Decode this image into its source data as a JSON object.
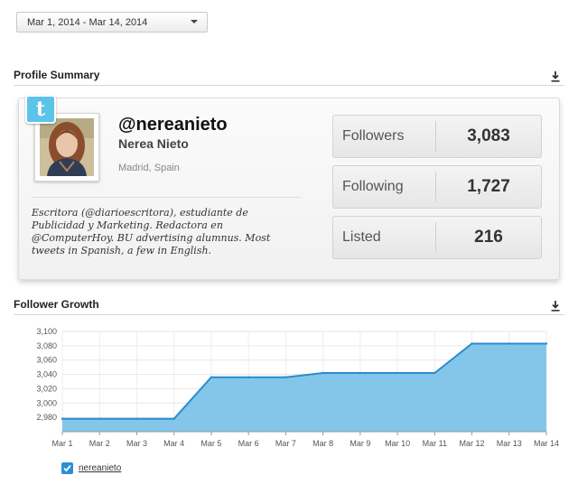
{
  "date_range": {
    "selected": "Mar 1, 2014 - Mar 14, 2014"
  },
  "profile_summary": {
    "title": "Profile Summary",
    "handle": "@nereanieto",
    "name": "Nerea Nieto",
    "location": "Madrid, Spain",
    "bio": "Escritora (@diarioescritora), estudiante de Publicidad y Marketing. Redactora en @ComputerHoy. BU advertising alumnus. Most tweets in Spanish, a few in English.",
    "stats": [
      {
        "label": "Followers",
        "value": "3,083"
      },
      {
        "label": "Following",
        "value": "1,727"
      },
      {
        "label": "Listed",
        "value": "216"
      }
    ]
  },
  "follower_growth": {
    "title": "Follower Growth"
  },
  "colors": {
    "area_fill": "#7cc3e8",
    "line": "#2b8ccf",
    "accent": "#2c8fd6"
  },
  "chart_data": {
    "type": "area",
    "categories": [
      "Mar 1",
      "Mar 2",
      "Mar 3",
      "Mar 4",
      "Mar 5",
      "Mar 6",
      "Mar 7",
      "Mar 8",
      "Mar 9",
      "Mar 10",
      "Mar 11",
      "Mar 12",
      "Mar 13",
      "Mar 14"
    ],
    "series": [
      {
        "name": "nereanieto",
        "values": [
          2978,
          2978,
          2978,
          2978,
          3036,
          3036,
          3036,
          3042,
          3042,
          3042,
          3042,
          3083,
          3083,
          3083
        ]
      }
    ],
    "yticks": [
      "2,980",
      "3,000",
      "3,020",
      "3,040",
      "3,060",
      "3,080",
      "3,100"
    ],
    "ylim": [
      2960,
      3100
    ],
    "grid": true,
    "legend": "bottom-left"
  }
}
